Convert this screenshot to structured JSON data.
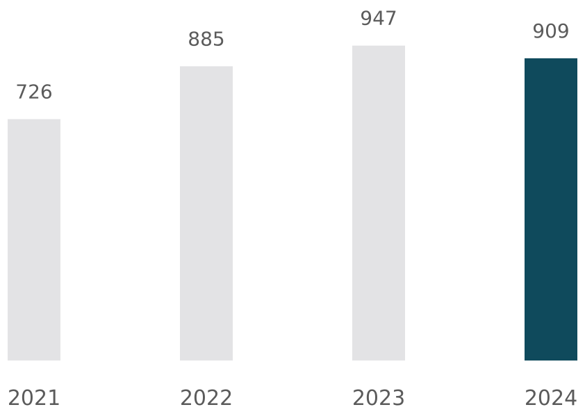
{
  "colors": {
    "background": "#ffffff",
    "bar_default": "#e3e3e5",
    "bar_highlight": "#0f4a5c",
    "text": "#5b5b5b"
  },
  "chart_data": {
    "type": "bar",
    "categories": [
      "2021",
      "2022",
      "2023",
      "2024"
    ],
    "values": [
      726,
      885,
      947,
      909
    ],
    "data_labels": [
      "726",
      "885",
      "947",
      "909"
    ],
    "highlighted_category": "2024",
    "title": "",
    "xlabel": "",
    "ylabel": "",
    "ylim": [
      0,
      1000
    ],
    "grid": false,
    "legend": "none"
  }
}
